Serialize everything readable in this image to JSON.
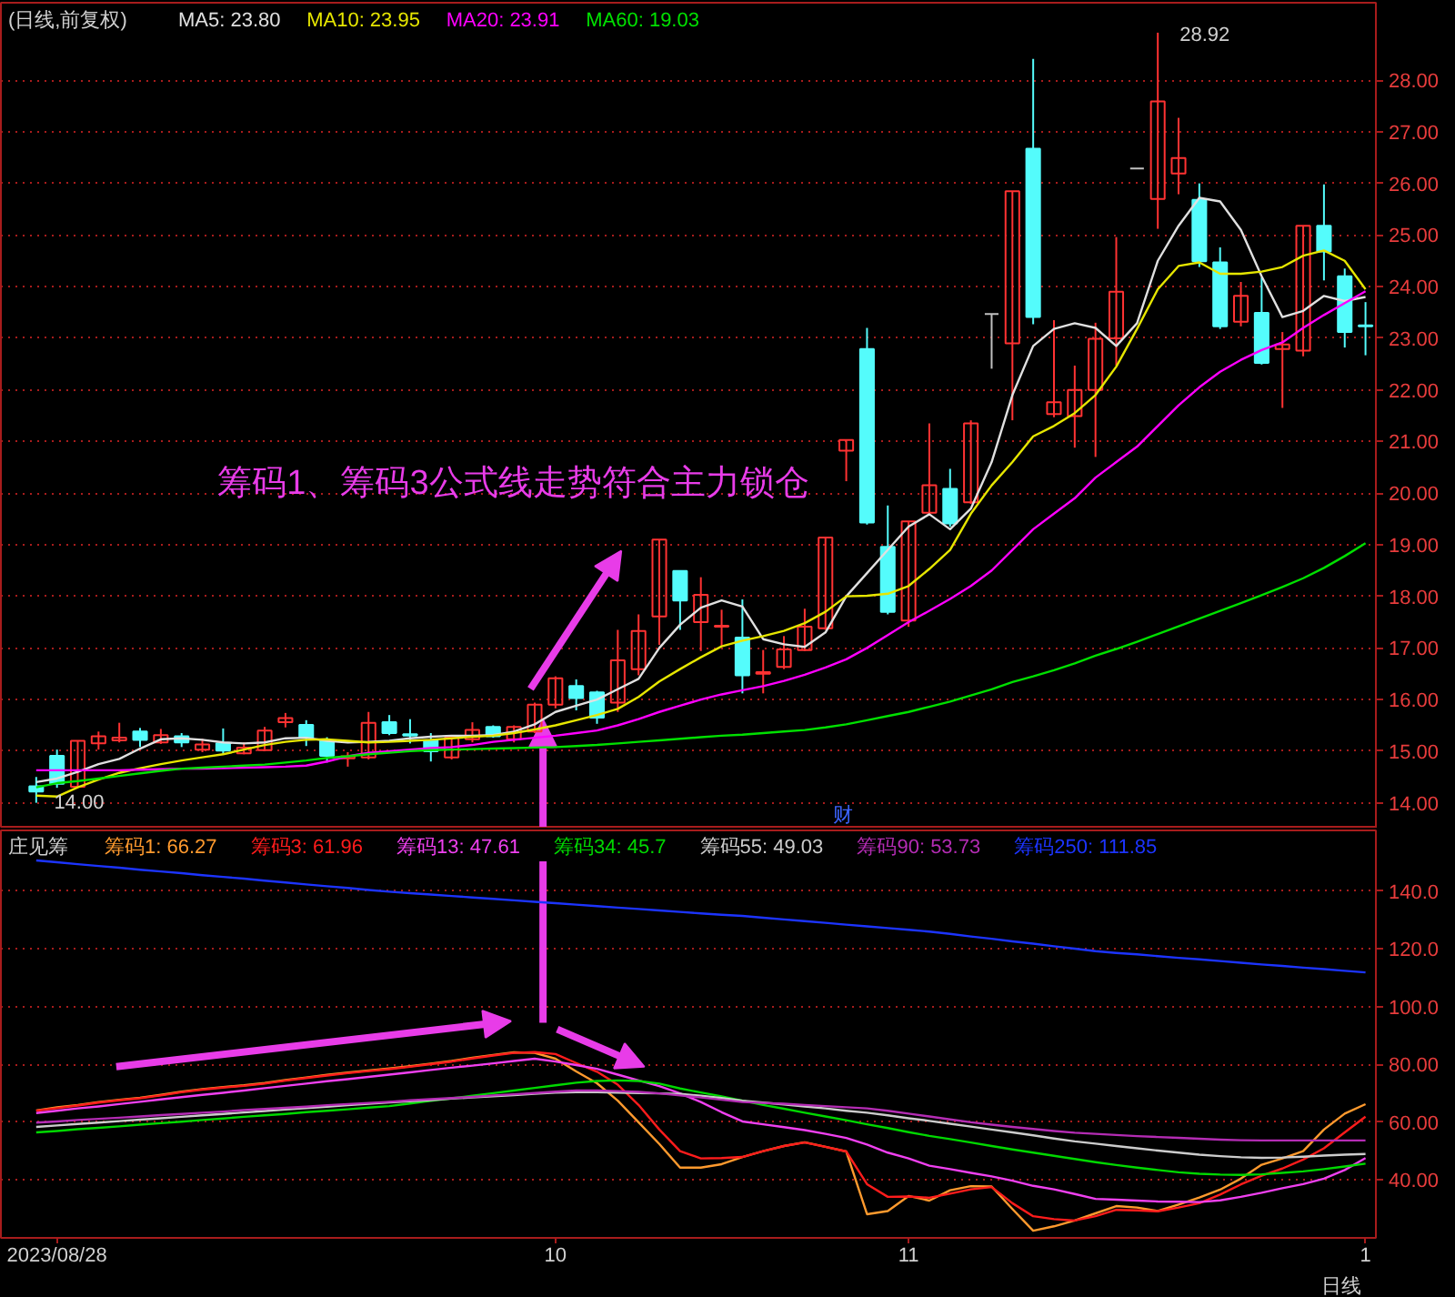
{
  "chart_data": [
    {
      "type": "candlestick",
      "title": "(日线,前复权)",
      "legend": "top left",
      "tick_labels": "y",
      "grid": "y",
      "categories": [
        null,
        "2023/08/28",
        null,
        null,
        null,
        null,
        null,
        null,
        null,
        null,
        null,
        null,
        null,
        null,
        null,
        null,
        null,
        null,
        null,
        null,
        null,
        null,
        null,
        null,
        null,
        "10",
        null,
        null,
        null,
        null,
        null,
        null,
        null,
        null,
        null,
        null,
        null,
        null,
        null,
        null,
        null,
        null,
        "11",
        null,
        null,
        null,
        null,
        null,
        null,
        null,
        null,
        null,
        null,
        null,
        null,
        null,
        null,
        null,
        null,
        null,
        null,
        null,
        null,
        null,
        "1"
      ],
      "ohlc": [
        [
          14.32,
          14.5,
          14.0,
          14.22
        ],
        [
          14.91,
          15.03,
          14.29,
          14.37
        ],
        [
          14.31,
          15.2,
          14.3,
          15.2
        ],
        [
          15.15,
          15.38,
          15.03,
          15.29
        ],
        [
          15.21,
          15.55,
          15.17,
          15.26
        ],
        [
          15.38,
          15.45,
          15.08,
          15.22
        ],
        [
          15.17,
          15.43,
          15.14,
          15.31
        ],
        [
          15.29,
          15.35,
          15.08,
          15.17
        ],
        [
          15.03,
          15.24,
          14.98,
          15.13
        ],
        [
          15.15,
          15.44,
          14.94,
          15.01
        ],
        [
          14.96,
          15.17,
          14.94,
          15.07
        ],
        [
          15.02,
          15.47,
          15.0,
          15.4
        ],
        [
          15.56,
          15.74,
          15.46,
          15.64
        ],
        [
          15.51,
          15.6,
          15.1,
          15.26
        ],
        [
          15.2,
          15.27,
          14.78,
          14.91
        ],
        [
          14.86,
          14.98,
          14.7,
          14.9
        ],
        [
          14.88,
          15.76,
          14.84,
          15.55
        ],
        [
          15.56,
          15.7,
          15.31,
          15.35
        ],
        [
          15.33,
          15.62,
          15.15,
          15.3
        ],
        [
          15.21,
          15.35,
          14.8,
          15.0
        ],
        [
          14.88,
          15.29,
          14.84,
          15.26
        ],
        [
          15.23,
          15.56,
          15.17,
          15.41
        ],
        [
          15.47,
          15.5,
          15.26,
          15.29
        ],
        [
          15.23,
          15.5,
          15.17,
          15.47
        ],
        [
          15.38,
          15.94,
          15.35,
          15.9
        ],
        [
          15.9,
          16.45,
          15.83,
          16.41
        ],
        [
          16.26,
          16.39,
          15.79,
          16.03
        ],
        [
          16.14,
          16.17,
          15.53,
          15.65
        ],
        [
          15.94,
          17.35,
          15.76,
          16.76
        ],
        [
          16.59,
          17.65,
          16.47,
          17.33
        ],
        [
          17.61,
          19.1,
          17.06,
          19.1
        ],
        [
          18.49,
          18.49,
          17.35,
          17.92
        ],
        [
          17.5,
          18.37,
          16.94,
          18.03
        ],
        [
          17.41,
          17.74,
          17.03,
          17.43
        ],
        [
          17.2,
          17.94,
          16.12,
          16.47
        ],
        [
          16.5,
          16.96,
          16.12,
          16.53
        ],
        [
          16.63,
          17.23,
          16.59,
          16.97
        ],
        [
          16.96,
          17.76,
          16.94,
          17.41
        ],
        [
          17.38,
          19.14,
          17.35,
          19.14
        ],
        [
          20.82,
          21.03,
          20.23,
          21.03
        ],
        [
          22.79,
          23.2,
          19.39,
          19.43
        ],
        [
          18.96,
          19.76,
          17.65,
          17.7
        ],
        [
          17.53,
          19.45,
          17.41,
          19.45
        ],
        [
          19.62,
          21.35,
          19.59,
          20.15
        ],
        [
          20.08,
          20.47,
          19.35,
          19.41
        ],
        [
          19.82,
          21.41,
          19.79,
          21.35
        ],
        [
          23.47,
          23.47,
          22.41,
          23.47
        ],
        [
          22.9,
          25.85,
          21.41,
          25.85
        ],
        [
          26.67,
          28.41,
          23.27,
          23.41
        ],
        [
          21.53,
          23.35,
          21.47,
          21.76
        ],
        [
          21.49,
          22.47,
          20.88,
          22.0
        ],
        [
          22.0,
          23.3,
          20.7,
          22.99
        ],
        [
          23.0,
          24.96,
          22.47,
          23.9
        ],
        [
          26.29,
          26.29,
          26.29,
          26.29
        ],
        [
          25.7,
          28.92,
          25.12,
          27.59
        ],
        [
          26.19,
          27.27,
          25.79,
          26.49
        ],
        [
          25.68,
          26.0,
          24.38,
          24.49
        ],
        [
          24.47,
          24.76,
          23.18,
          23.23
        ],
        [
          23.32,
          24.09,
          23.23,
          23.82
        ],
        [
          23.49,
          24.18,
          22.49,
          22.52
        ],
        [
          22.79,
          23.12,
          21.65,
          22.88
        ],
        [
          22.76,
          25.18,
          22.65,
          25.18
        ],
        [
          25.18,
          25.98,
          24.12,
          24.68
        ],
        [
          24.2,
          24.35,
          22.82,
          23.12
        ],
        [
          23.25,
          23.7,
          22.67,
          23.23
        ]
      ],
      "colors": [
        "#54fcfc",
        "#54fcfc",
        "#ff3232",
        "#ff3232",
        "#ff3232",
        "#54fcfc",
        "#ff3232",
        "#54fcfc",
        "#ff3232",
        "#54fcfc",
        "#ff3232",
        "#ff3232",
        "#ff3232",
        "#54fcfc",
        "#54fcfc",
        "#ff3232",
        "#ff3232",
        "#54fcfc",
        "#54fcfc",
        "#54fcfc",
        "#ff3232",
        "#ff3232",
        "#54fcfc",
        "#ff3232",
        "#ff3232",
        "#ff3232",
        "#54fcfc",
        "#54fcfc",
        "#ff3232",
        "#ff3232",
        "#ff3232",
        "#54fcfc",
        "#ff3232",
        "#ff3232",
        "#54fcfc",
        "#ff3232",
        "#ff3232",
        "#ff3232",
        "#ff3232",
        "#ff3232",
        "#54fcfc",
        "#54fcfc",
        "#ff3232",
        "#ff3232",
        "#54fcfc",
        "#ff3232",
        "#c0c0c0",
        "#ff3232",
        "#54fcfc",
        "#ff3232",
        "#ff3232",
        "#ff3232",
        "#ff3232",
        "#c0c0c0",
        "#ff3232",
        "#ff3232",
        "#54fcfc",
        "#54fcfc",
        "#ff3232",
        "#54fcfc",
        "#ff3232",
        "#ff3232",
        "#54fcfc",
        "#54fcfc",
        "#54fcfc"
      ],
      "series": [
        {
          "name": "MA5: 23.80",
          "type": "line",
          "color": "#e0e0e0",
          "values": [
            14.4,
            14.47,
            14.6,
            14.75,
            14.85,
            15.05,
            15.23,
            15.25,
            15.22,
            15.17,
            15.15,
            15.17,
            15.25,
            15.26,
            15.2,
            15.17,
            15.18,
            15.2,
            15.25,
            15.28,
            15.3,
            15.3,
            15.31,
            15.38,
            15.52,
            15.76,
            15.88,
            16.0,
            16.2,
            16.4,
            17.0,
            17.45,
            17.78,
            17.92,
            17.8,
            17.17,
            17.07,
            17.02,
            17.3,
            18.0,
            18.45,
            18.9,
            19.35,
            19.59,
            19.3,
            19.7,
            20.6,
            21.9,
            22.85,
            23.18,
            23.29,
            23.2,
            22.85,
            23.29,
            24.5,
            25.18,
            25.72,
            25.65,
            25.1,
            24.2,
            23.41,
            23.53,
            23.82,
            23.72,
            23.8
          ]
        },
        {
          "name": "MA10: 23.95",
          "type": "line",
          "color": "#e6e600",
          "values": [
            14.14,
            14.12,
            14.3,
            14.45,
            14.58,
            14.67,
            14.75,
            14.82,
            14.88,
            14.94,
            15.03,
            15.12,
            15.18,
            15.22,
            15.23,
            15.2,
            15.17,
            15.18,
            15.2,
            15.22,
            15.25,
            15.28,
            15.3,
            15.35,
            15.42,
            15.5,
            15.6,
            15.7,
            15.82,
            16.05,
            16.35,
            16.59,
            16.82,
            17.03,
            17.14,
            17.23,
            17.33,
            17.48,
            17.7,
            18.0,
            18.01,
            18.05,
            18.2,
            18.53,
            18.9,
            19.6,
            20.15,
            20.6,
            21.1,
            21.3,
            21.55,
            21.9,
            22.45,
            23.18,
            23.95,
            24.4,
            24.47,
            24.25,
            24.25,
            24.29,
            24.38,
            24.6,
            24.7,
            24.5,
            23.95
          ]
        },
        {
          "name": "MA20: 23.91",
          "type": "line",
          "color": "#ff00ff",
          "values": [
            14.63,
            14.63,
            14.63,
            14.63,
            14.63,
            14.64,
            14.65,
            14.66,
            14.66,
            14.67,
            14.68,
            14.69,
            14.7,
            14.72,
            14.8,
            14.9,
            14.97,
            15.0,
            15.03,
            15.06,
            15.08,
            15.12,
            15.18,
            15.22,
            15.26,
            15.3,
            15.35,
            15.4,
            15.5,
            15.62,
            15.76,
            15.88,
            16.0,
            16.1,
            16.18,
            16.26,
            16.36,
            16.48,
            16.62,
            16.78,
            17.0,
            17.25,
            17.5,
            17.72,
            17.95,
            18.2,
            18.5,
            18.9,
            19.3,
            19.6,
            19.9,
            20.3,
            20.6,
            20.9,
            21.3,
            21.7,
            22.05,
            22.35,
            22.58,
            22.77,
            22.92,
            23.2,
            23.45,
            23.68,
            23.91
          ]
        },
        {
          "name": "MA60: 19.03",
          "type": "line",
          "color": "#00e000",
          "values": [
            14.3,
            14.38,
            14.42,
            14.47,
            14.52,
            14.57,
            14.62,
            14.66,
            14.68,
            14.7,
            14.72,
            14.74,
            14.78,
            14.82,
            14.87,
            14.9,
            14.94,
            14.97,
            15.0,
            15.02,
            15.03,
            15.04,
            15.05,
            15.06,
            15.07,
            15.08,
            15.1,
            15.12,
            15.15,
            15.18,
            15.21,
            15.24,
            15.27,
            15.3,
            15.32,
            15.35,
            15.38,
            15.41,
            15.46,
            15.52,
            15.6,
            15.68,
            15.76,
            15.86,
            15.96,
            16.08,
            16.2,
            16.34,
            16.45,
            16.57,
            16.7,
            16.85,
            16.98,
            17.12,
            17.27,
            17.42,
            17.57,
            17.72,
            17.87,
            18.02,
            18.18,
            18.35,
            18.55,
            18.78,
            19.03
          ]
        }
      ],
      "ylim": [
        13.5,
        29.5
      ],
      "yticks": [
        {
          "value": 14,
          "label": "14.00"
        },
        {
          "value": 15,
          "label": "15.00"
        },
        {
          "value": 16,
          "label": "16.00"
        },
        {
          "value": 17,
          "label": "17.00"
        },
        {
          "value": 18,
          "label": "18.00"
        },
        {
          "value": 19,
          "label": "19.00"
        },
        {
          "value": 20,
          "label": "20.00"
        },
        {
          "value": 21,
          "label": "21.00"
        },
        {
          "value": 22,
          "label": "22.00"
        },
        {
          "value": 23,
          "label": "23.00"
        },
        {
          "value": 24,
          "label": "24.00"
        },
        {
          "value": 25,
          "label": "25.00"
        },
        {
          "value": 26,
          "label": "26.00"
        },
        {
          "value": 27,
          "label": "27.00"
        },
        {
          "value": 28,
          "label": "28.00"
        }
      ],
      "annotations": [
        "筹码1、筹码3公式线走势符合主力锁仓",
        "14.00",
        "28.92",
        "财"
      ]
    },
    {
      "type": "line",
      "title": "庄见筹",
      "legend": "top left",
      "grid": "y",
      "categories": [
        null,
        "2023/08/28",
        null,
        null,
        null,
        null,
        null,
        null,
        null,
        null,
        null,
        null,
        null,
        null,
        null,
        null,
        null,
        null,
        null,
        null,
        null,
        null,
        null,
        null,
        null,
        "10",
        null,
        null,
        null,
        null,
        null,
        null,
        null,
        null,
        null,
        null,
        null,
        null,
        null,
        null,
        null,
        null,
        "11",
        null,
        null,
        null,
        null,
        null,
        null,
        null,
        null,
        null,
        null,
        null,
        null,
        null,
        null,
        null,
        null,
        null,
        null,
        null,
        null,
        null,
        "1"
      ],
      "series": [
        {
          "name": "筹码1: 66.27",
          "color": "#ff9a2e",
          "values": [
            64.1,
            65.2,
            66.0,
            67.0,
            67.8,
            68.5,
            69.5,
            70.6,
            71.5,
            72.2,
            72.8,
            73.6,
            74.6,
            75.5,
            76.4,
            77.2,
            77.9,
            78.6,
            79.4,
            80.3,
            81.2,
            82.3,
            83.3,
            84.2,
            84.0,
            82.0,
            77.6,
            73.5,
            67.5,
            60.0,
            52.5,
            44.3,
            44.3,
            45.5,
            48.0,
            50.0,
            51.8,
            53.1,
            51.5,
            49.9,
            28.2,
            29.3,
            34.5,
            32.9,
            36.5,
            37.9,
            37.8,
            30.0,
            22.5,
            24.0,
            26.0,
            28.5,
            31.0,
            30.5,
            29.3,
            31.5,
            34.0,
            36.7,
            40.5,
            45.3,
            47.5,
            50.0,
            57.5,
            63.0,
            66.27
          ]
        },
        {
          "name": "筹码3: 61.96",
          "color": "#ff1c1c",
          "values": [
            64.0,
            64.9,
            65.8,
            66.8,
            67.6,
            68.3,
            69.3,
            70.4,
            71.3,
            72.0,
            72.6,
            73.4,
            74.4,
            75.3,
            76.2,
            77.0,
            77.7,
            78.4,
            79.2,
            80.1,
            81.0,
            82.1,
            83.1,
            84.0,
            84.3,
            83.6,
            80.5,
            77.5,
            73.0,
            66.0,
            57.5,
            50.0,
            47.5,
            47.6,
            48.0,
            50.0,
            51.8,
            53.0,
            51.5,
            49.9,
            38.6,
            34.2,
            34.3,
            33.9,
            35.3,
            36.8,
            37.6,
            32.0,
            27.5,
            26.5,
            26.0,
            27.5,
            29.7,
            29.5,
            29.2,
            30.5,
            32.0,
            35.0,
            38.5,
            41.5,
            44.0,
            47.1,
            51.0,
            56.5,
            61.96
          ]
        },
        {
          "name": "筹码13: 47.61",
          "color": "#f040f0",
          "values": [
            63.2,
            64.0,
            64.8,
            65.5,
            66.3,
            67.1,
            67.9,
            68.7,
            69.5,
            70.2,
            71.0,
            71.8,
            72.6,
            73.4,
            74.2,
            74.9,
            75.7,
            76.5,
            77.3,
            78.1,
            78.9,
            79.6,
            80.4,
            81.2,
            82.0,
            81.0,
            79.8,
            78.5,
            76.5,
            74.5,
            72.5,
            70.0,
            67.0,
            63.5,
            60.3,
            59.3,
            58.3,
            57.3,
            56.0,
            54.6,
            52.3,
            49.5,
            47.5,
            45.0,
            43.8,
            42.5,
            41.3,
            39.8,
            38.0,
            36.8,
            35.2,
            33.5,
            33.2,
            32.9,
            32.6,
            32.5,
            32.4,
            33.0,
            34.2,
            35.6,
            37.2,
            38.6,
            40.5,
            43.5,
            47.61
          ]
        },
        {
          "name": "筹码34: 45.7",
          "color": "#00d800",
          "values": [
            56.5,
            57.0,
            57.6,
            58.1,
            58.6,
            59.2,
            59.7,
            60.2,
            60.8,
            61.3,
            61.9,
            62.4,
            62.9,
            63.5,
            64.0,
            64.5,
            65.1,
            65.6,
            66.5,
            67.4,
            68.3,
            69.2,
            70.1,
            71.0,
            71.9,
            72.8,
            73.7,
            74.3,
            74.5,
            74.3,
            73.4,
            71.7,
            70.3,
            69.0,
            67.5,
            66.0,
            64.7,
            63.3,
            62.0,
            60.7,
            59.3,
            58.0,
            56.6,
            55.3,
            54.2,
            53.0,
            51.8,
            50.6,
            49.5,
            48.4,
            47.3,
            46.2,
            45.2,
            44.3,
            43.5,
            42.7,
            42.2,
            41.9,
            41.8,
            42.0,
            42.5,
            43.0,
            43.8,
            44.7,
            45.7
          ]
        },
        {
          "name": "筹码55: 49.03",
          "color": "#cccccc",
          "values": [
            58.4,
            58.9,
            59.4,
            59.9,
            60.4,
            60.9,
            61.4,
            61.9,
            62.4,
            62.9,
            63.4,
            63.9,
            64.4,
            64.9,
            65.4,
            65.9,
            66.4,
            66.9,
            67.3,
            67.7,
            68.2,
            68.6,
            69.0,
            69.4,
            69.9,
            70.3,
            70.4,
            70.4,
            70.3,
            70.1,
            70.0,
            69.8,
            69.2,
            68.4,
            67.5,
            66.8,
            66.2,
            65.5,
            64.8,
            64.0,
            63.3,
            62.4,
            61.4,
            60.5,
            59.5,
            58.5,
            57.5,
            56.5,
            55.5,
            54.4,
            53.4,
            52.6,
            51.8,
            51.0,
            50.2,
            49.5,
            48.8,
            48.3,
            47.9,
            47.7,
            47.8,
            48.1,
            48.5,
            48.8,
            49.03
          ]
        },
        {
          "name": "筹码90: 53.73",
          "color": "#b42cb4",
          "values": [
            59.9,
            60.3,
            60.8,
            61.2,
            61.6,
            62.0,
            62.5,
            62.9,
            63.3,
            63.7,
            64.2,
            64.6,
            65.0,
            65.4,
            65.9,
            66.3,
            66.7,
            67.1,
            67.6,
            68.0,
            68.4,
            68.8,
            69.3,
            69.7,
            70.1,
            70.6,
            71.0,
            71.0,
            70.8,
            70.5,
            70.0,
            69.3,
            68.6,
            67.8,
            67.0,
            66.7,
            66.4,
            66.0,
            65.6,
            65.2,
            64.8,
            64.0,
            63.0,
            62.0,
            61.0,
            60.0,
            59.2,
            58.4,
            57.7,
            57.0,
            56.4,
            56.0,
            55.6,
            55.2,
            54.9,
            54.6,
            54.3,
            54.0,
            53.8,
            53.7,
            53.7,
            53.7,
            53.7,
            53.7,
            53.73
          ]
        },
        {
          "name": "筹码250: 111.85",
          "color": "#1c34ff",
          "values": [
            150.6,
            150.0,
            149.3,
            148.7,
            148.1,
            147.4,
            146.8,
            146.2,
            145.5,
            144.9,
            144.3,
            143.6,
            143.0,
            142.3,
            141.7,
            141.1,
            140.4,
            139.8,
            139.3,
            138.8,
            138.3,
            137.8,
            137.3,
            136.8,
            136.3,
            135.8,
            135.3,
            134.8,
            134.3,
            133.8,
            133.3,
            132.8,
            132.3,
            131.8,
            131.4,
            130.8,
            130.2,
            129.6,
            129.0,
            128.4,
            127.8,
            127.2,
            126.6,
            126.0,
            125.2,
            124.3,
            123.5,
            122.6,
            121.8,
            120.9,
            120.1,
            119.2,
            118.6,
            118.1,
            117.5,
            116.9,
            116.4,
            115.8,
            115.2,
            114.6,
            114.1,
            113.5,
            113.0,
            112.4,
            111.85
          ]
        }
      ],
      "ylim": [
        20,
        161
      ],
      "yticks": [
        {
          "value": 40,
          "label": "40.00"
        },
        {
          "value": 60,
          "label": "60.00"
        },
        {
          "value": 80,
          "label": "80.00"
        },
        {
          "value": 100,
          "label": "100.0"
        },
        {
          "value": 120,
          "label": "120.0"
        },
        {
          "value": 140,
          "label": "140.0"
        }
      ],
      "annotations": [
        "日线"
      ]
    }
  ]
}
